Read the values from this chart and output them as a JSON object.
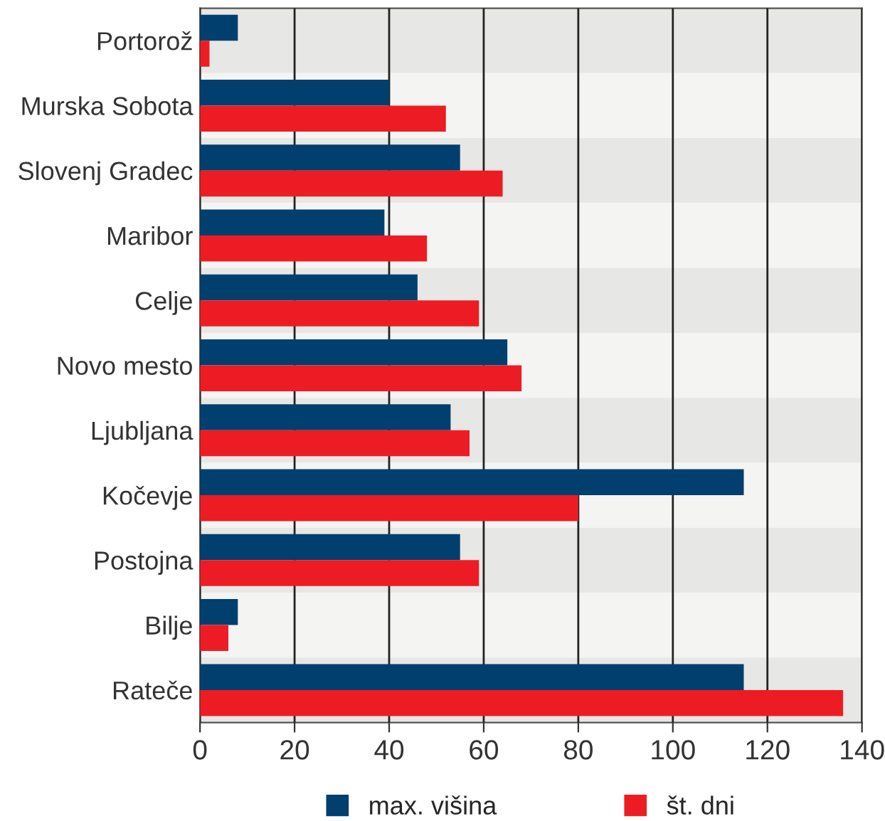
{
  "chart_data": {
    "type": "bar",
    "orientation": "horizontal",
    "categories": [
      "Portorož",
      "Murska Sobota",
      "Slovenj Gradec",
      "Maribor",
      "Celje",
      "Novo mesto",
      "Ljubljana",
      "Kočevje",
      "Postojna",
      "Bilje",
      "Rateče"
    ],
    "series": [
      {
        "name": "max. višina",
        "color": "#003f6e",
        "values": [
          8,
          40,
          55,
          39,
          46,
          65,
          53,
          115,
          55,
          8,
          115
        ]
      },
      {
        "name": "št. dni",
        "color": "#ed1c24",
        "values": [
          2,
          52,
          64,
          48,
          59,
          68,
          57,
          80,
          59,
          6,
          136
        ]
      }
    ],
    "xlim": [
      0,
      140
    ],
    "xticks": [
      0,
      20,
      40,
      60,
      80,
      100,
      120,
      140
    ],
    "grid": "x",
    "legend": "bottom"
  }
}
